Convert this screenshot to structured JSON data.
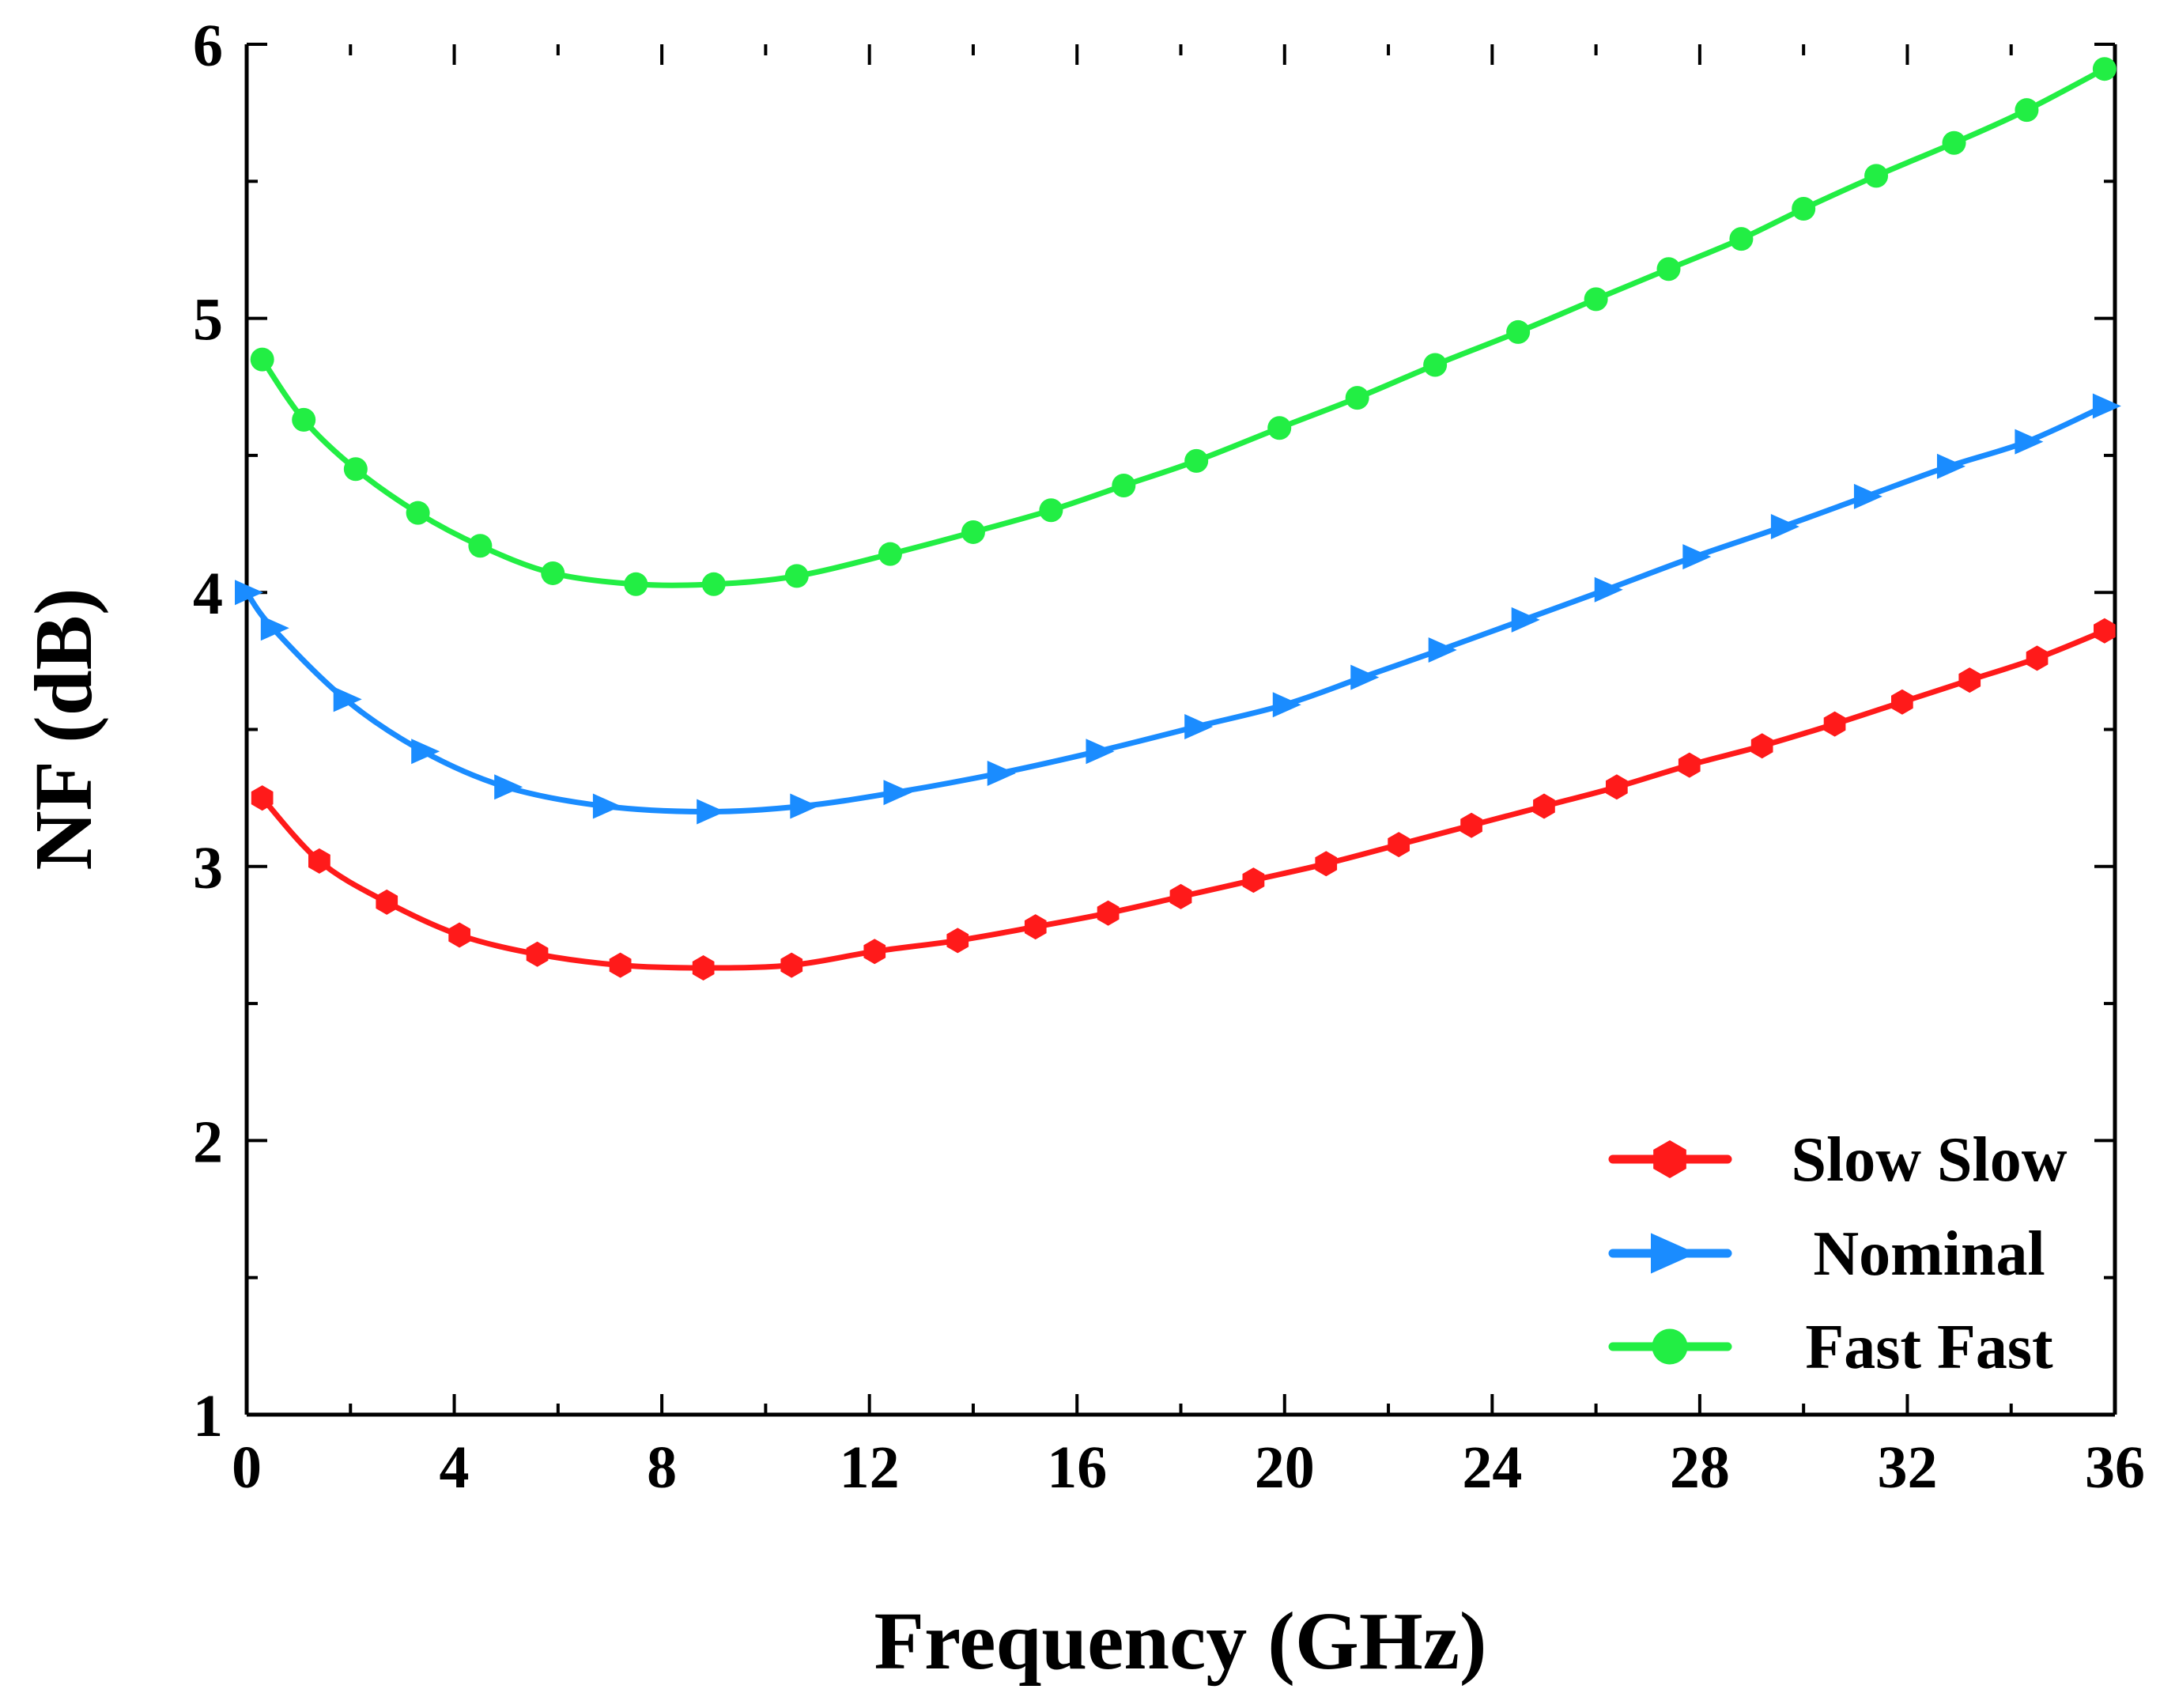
{
  "chart_data": {
    "type": "line",
    "title": "",
    "xlabel": "Frequency (GHz)",
    "ylabel": "NF (dB)",
    "xlim": [
      0,
      36
    ],
    "ylim": [
      1,
      6
    ],
    "xticks": [
      0,
      4,
      8,
      12,
      16,
      20,
      24,
      28,
      32,
      36
    ],
    "yticks": [
      1,
      2,
      3,
      4,
      5,
      6
    ],
    "xtick_labels": [
      "0",
      "4",
      "8",
      "12",
      "16",
      "20",
      "24",
      "28",
      "32",
      "36"
    ],
    "ytick_labels": [
      "1",
      "2",
      "3",
      "4",
      "5",
      "6"
    ],
    "grid": false,
    "legend_position": "bottom-right",
    "series": [
      {
        "name": "Slow Slow",
        "color": "#ff1a1a",
        "marker": "hexagon",
        "x": [
          0.3,
          1.4,
          2.7,
          4.1,
          5.6,
          7.2,
          8.8,
          10.5,
          12.1,
          13.7,
          15.2,
          16.6,
          18.0,
          19.4,
          20.8,
          22.2,
          23.6,
          25.0,
          26.4,
          27.8,
          29.2,
          30.6,
          31.9,
          33.2,
          34.5,
          35.8
        ],
        "y": [
          3.25,
          3.02,
          2.87,
          2.75,
          2.68,
          2.64,
          2.63,
          2.64,
          2.69,
          2.73,
          2.78,
          2.83,
          2.89,
          2.95,
          3.01,
          3.08,
          3.15,
          3.22,
          3.29,
          3.37,
          3.44,
          3.52,
          3.6,
          3.68,
          3.76,
          3.86
        ]
      },
      {
        "name": "Nominal",
        "color": "#1a8cff",
        "marker": "triangle-right",
        "x": [
          0.0,
          0.5,
          1.9,
          3.4,
          5.0,
          6.9,
          8.9,
          10.7,
          12.5,
          14.5,
          16.4,
          18.3,
          20.0,
          21.5,
          23.0,
          24.6,
          26.2,
          27.9,
          29.6,
          31.2,
          32.8,
          34.3,
          35.8
        ],
        "y": [
          4.0,
          3.87,
          3.61,
          3.42,
          3.29,
          3.22,
          3.2,
          3.22,
          3.27,
          3.34,
          3.42,
          3.51,
          3.59,
          3.69,
          3.79,
          3.9,
          4.01,
          4.13,
          4.24,
          4.35,
          4.46,
          4.55,
          4.68
        ]
      },
      {
        "name": "Fast Fast",
        "color": "#22ee44",
        "marker": "circle",
        "x": [
          0.3,
          1.1,
          2.1,
          3.3,
          4.5,
          5.9,
          7.5,
          9.0,
          10.6,
          12.4,
          14.0,
          15.5,
          16.9,
          18.3,
          19.9,
          21.4,
          22.9,
          24.5,
          26.0,
          27.4,
          28.8,
          30.0,
          31.4,
          32.9,
          34.3,
          35.8
        ],
        "y": [
          4.85,
          4.63,
          4.45,
          4.29,
          4.17,
          4.07,
          4.03,
          4.03,
          4.06,
          4.14,
          4.22,
          4.3,
          4.39,
          4.48,
          4.6,
          4.71,
          4.83,
          4.95,
          5.07,
          5.18,
          5.29,
          5.4,
          5.52,
          5.64,
          5.76,
          5.91
        ]
      }
    ]
  }
}
